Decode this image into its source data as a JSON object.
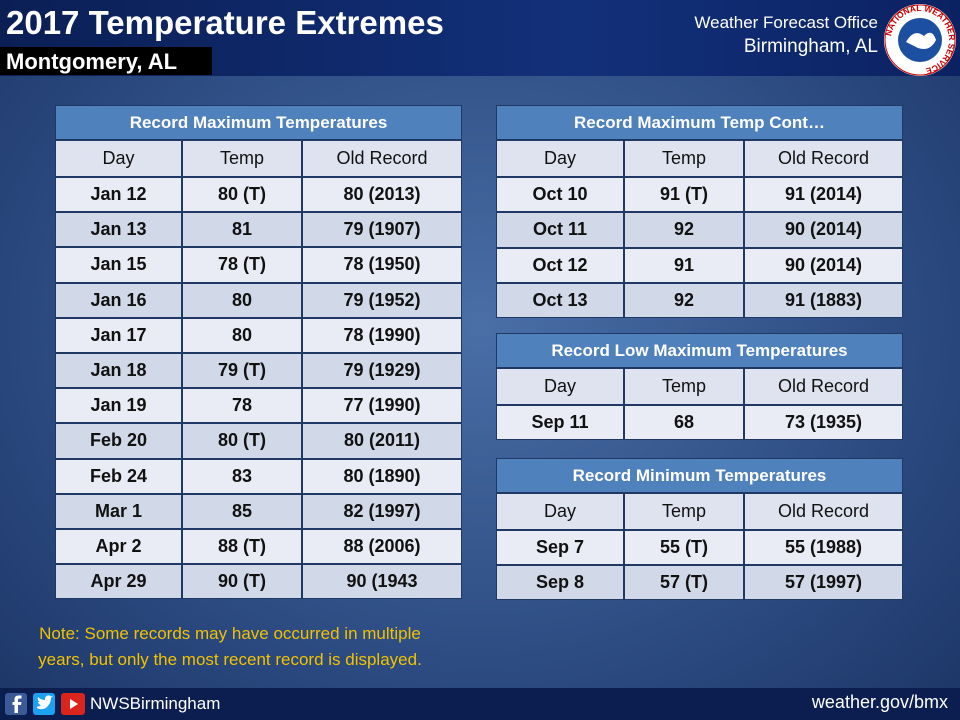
{
  "header": {
    "title": "2017 Temperature Extremes",
    "subtitle": "Montgomery, AL",
    "office": "Weather Forecast Office",
    "location": "Birmingham, AL",
    "logo_text": "NATIONAL WEATHER SERVICE"
  },
  "tables": [
    {
      "title": "Record Maximum Temperatures",
      "columns": [
        "Day",
        "Temp",
        "Old Record"
      ],
      "rows": [
        [
          "Jan 12",
          "80 (T)",
          "80 (2013)"
        ],
        [
          "Jan 13",
          "81",
          "79 (1907)"
        ],
        [
          "Jan 15",
          "78 (T)",
          "78 (1950)"
        ],
        [
          "Jan 16",
          "80",
          "79 (1952)"
        ],
        [
          "Jan 17",
          "80",
          "78 (1990)"
        ],
        [
          "Jan 18",
          "79 (T)",
          "79 (1929)"
        ],
        [
          "Jan 19",
          "78",
          "77 (1990)"
        ],
        [
          "Feb 20",
          "80 (T)",
          "80 (2011)"
        ],
        [
          "Feb 24",
          "83",
          "80 (1890)"
        ],
        [
          "Mar 1",
          "85",
          "82 (1997)"
        ],
        [
          "Apr 2",
          "88 (T)",
          "88 (2006)"
        ],
        [
          "Apr 29",
          "90 (T)",
          "90 (1943"
        ]
      ]
    },
    {
      "title": "Record Maximum Temp Cont…",
      "columns": [
        "Day",
        "Temp",
        "Old Record"
      ],
      "rows": [
        [
          "Oct 10",
          "91 (T)",
          "91 (2014)"
        ],
        [
          "Oct 11",
          "92",
          "90 (2014)"
        ],
        [
          "Oct 12",
          "91",
          "90 (2014)"
        ],
        [
          "Oct 13",
          "92",
          "91 (1883)"
        ]
      ]
    },
    {
      "title": "Record Low Maximum Temperatures",
      "columns": [
        "Day",
        "Temp",
        "Old Record"
      ],
      "rows": [
        [
          "Sep 11",
          "68",
          "73 (1935)"
        ]
      ]
    },
    {
      "title": "Record Minimum Temperatures",
      "columns": [
        "Day",
        "Temp",
        "Old Record"
      ],
      "rows": [
        [
          "Sep 7",
          "55 (T)",
          "55 (1988)"
        ],
        [
          "Sep 8",
          "57 (T)",
          "57 (1997)"
        ]
      ]
    }
  ],
  "note": {
    "line1": "Note: Some records may have occurred in multiple",
    "line2": "years, but only the most recent record is displayed."
  },
  "footer": {
    "handle": "NWSBirmingham",
    "url": "weather.gov/bmx"
  }
}
